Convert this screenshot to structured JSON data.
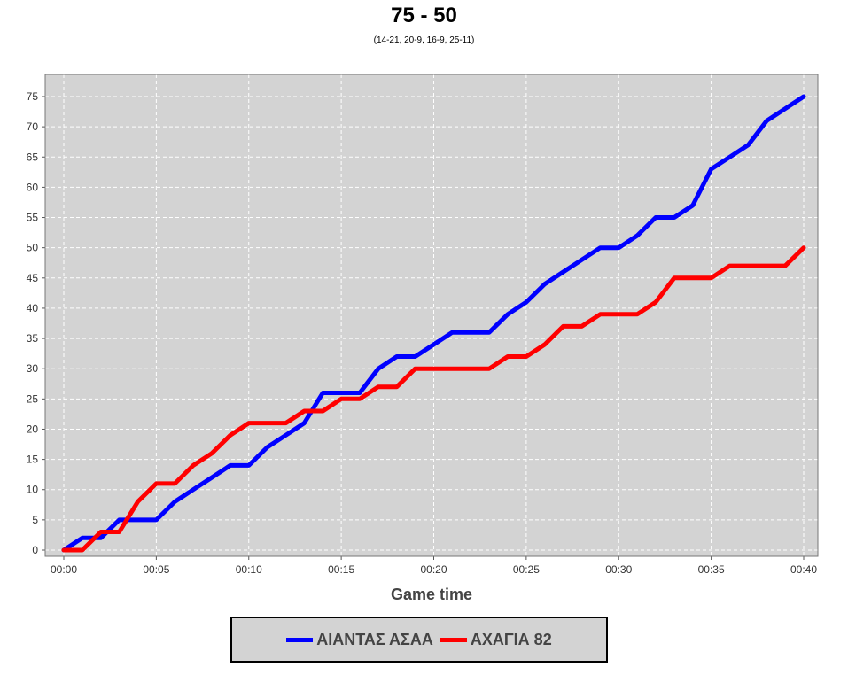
{
  "chart_data": {
    "type": "line",
    "title": "75 - 50",
    "subtitle": "(14-21, 20-9, 16-9, 25-11)",
    "xlabel": "Game time",
    "ylabel": "",
    "xlim": [
      0,
      40
    ],
    "ylim": [
      0,
      79
    ],
    "x_ticks": [
      "00:00",
      "00:05",
      "00:10",
      "00:15",
      "00:20",
      "00:25",
      "00:30",
      "00:35",
      "00:40"
    ],
    "y_ticks": [
      0,
      5,
      10,
      15,
      20,
      25,
      30,
      35,
      40,
      45,
      50,
      55,
      60,
      65,
      70,
      75
    ],
    "grid": true,
    "legend_position": "bottom",
    "background": "#d3d3d3",
    "series": [
      {
        "name": "ΑΙΑΝΤΑΣ ΑΣΑΑ",
        "color": "#0000ff",
        "points": [
          [
            0,
            0
          ],
          [
            1,
            2
          ],
          [
            2,
            2
          ],
          [
            3,
            5
          ],
          [
            4,
            5
          ],
          [
            5,
            5
          ],
          [
            6,
            8
          ],
          [
            7,
            10
          ],
          [
            8,
            12
          ],
          [
            9,
            14
          ],
          [
            10,
            14
          ],
          [
            11,
            17
          ],
          [
            12,
            19
          ],
          [
            13,
            21
          ],
          [
            14,
            26
          ],
          [
            15,
            26
          ],
          [
            16,
            26
          ],
          [
            17,
            30
          ],
          [
            18,
            32
          ],
          [
            19,
            32
          ],
          [
            20,
            34
          ],
          [
            21,
            36
          ],
          [
            22,
            36
          ],
          [
            23,
            36
          ],
          [
            24,
            39
          ],
          [
            25,
            41
          ],
          [
            26,
            44
          ],
          [
            27,
            46
          ],
          [
            28,
            48
          ],
          [
            29,
            50
          ],
          [
            30,
            50
          ],
          [
            31,
            52
          ],
          [
            32,
            55
          ],
          [
            33,
            55
          ],
          [
            34,
            57
          ],
          [
            35,
            63
          ],
          [
            36,
            65
          ],
          [
            37,
            67
          ],
          [
            38,
            71
          ],
          [
            39,
            73
          ],
          [
            40,
            75
          ]
        ]
      },
      {
        "name": "ΑΧΑΓΙΑ 82",
        "color": "#ff0000",
        "points": [
          [
            0,
            0
          ],
          [
            1,
            0
          ],
          [
            2,
            3
          ],
          [
            3,
            3
          ],
          [
            4,
            8
          ],
          [
            5,
            11
          ],
          [
            6,
            11
          ],
          [
            7,
            14
          ],
          [
            8,
            16
          ],
          [
            9,
            19
          ],
          [
            10,
            21
          ],
          [
            11,
            21
          ],
          [
            12,
            21
          ],
          [
            13,
            23
          ],
          [
            14,
            23
          ],
          [
            15,
            25
          ],
          [
            16,
            25
          ],
          [
            17,
            27
          ],
          [
            18,
            27
          ],
          [
            19,
            30
          ],
          [
            20,
            30
          ],
          [
            21,
            30
          ],
          [
            22,
            30
          ],
          [
            23,
            30
          ],
          [
            24,
            32
          ],
          [
            25,
            32
          ],
          [
            26,
            34
          ],
          [
            27,
            37
          ],
          [
            28,
            37
          ],
          [
            29,
            39
          ],
          [
            30,
            39
          ],
          [
            31,
            39
          ],
          [
            32,
            41
          ],
          [
            33,
            45
          ],
          [
            34,
            45
          ],
          [
            35,
            45
          ],
          [
            36,
            47
          ],
          [
            37,
            47
          ],
          [
            38,
            47
          ],
          [
            39,
            47
          ],
          [
            40,
            50
          ]
        ]
      }
    ]
  }
}
